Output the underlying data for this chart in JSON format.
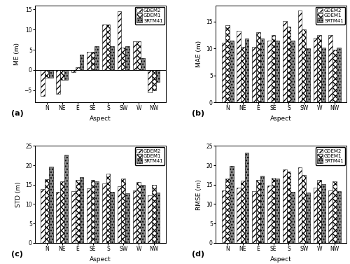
{
  "aspects": [
    "N",
    "NE",
    "E",
    "SE",
    "S",
    "SW",
    "W",
    "NW"
  ],
  "ME": {
    "GDEM2": [
      -6.5,
      -6.0,
      -0.6,
      4.5,
      11.2,
      14.5,
      7.0,
      -5.5
    ],
    "GDEM1": [
      -2.0,
      -2.5,
      0.6,
      4.5,
      11.2,
      5.5,
      7.0,
      -5.0
    ],
    "SRTM41": [
      -2.0,
      -2.5,
      3.8,
      5.8,
      5.8,
      5.8,
      3.0,
      -3.0
    ]
  },
  "MAE": {
    "GDEM2": [
      11.0,
      13.2,
      10.3,
      11.5,
      15.1,
      17.0,
      12.0,
      12.5
    ],
    "GDEM1": [
      14.3,
      10.3,
      13.0,
      12.5,
      14.0,
      13.5,
      12.5,
      9.7
    ],
    "SRTM41": [
      11.5,
      11.8,
      11.8,
      11.5,
      11.5,
      10.0,
      10.2,
      10.1
    ]
  },
  "STD": {
    "GDEM2": [
      13.8,
      13.2,
      13.3,
      14.0,
      15.3,
      14.6,
      13.5,
      12.2
    ],
    "GDEM1": [
      16.4,
      15.9,
      16.3,
      16.2,
      17.8,
      16.5,
      15.6,
      14.9
    ],
    "SRTM41": [
      19.6,
      22.8,
      17.0,
      15.8,
      13.1,
      12.7,
      15.0,
      13.0
    ]
  },
  "RMSE": {
    "GDEM2": [
      13.5,
      14.3,
      13.3,
      14.7,
      19.0,
      19.5,
      14.2,
      13.5
    ],
    "GDEM1": [
      16.5,
      16.1,
      16.3,
      16.8,
      18.3,
      17.5,
      16.2,
      15.8
    ],
    "SRTM41": [
      19.8,
      23.3,
      17.3,
      16.5,
      13.2,
      13.0,
      15.2,
      13.3
    ]
  },
  "panel_labels": [
    "(a)",
    "(b)",
    "(c)",
    "(d)"
  ],
  "ylabels": [
    "ME (m)",
    "MAE (m)",
    "STD (m)",
    "RMSE (m)"
  ],
  "ME_ylim": [
    -8,
    16
  ],
  "MAE_ylim": [
    0,
    18
  ],
  "STD_ylim": [
    0,
    25
  ],
  "RMSE_ylim": [
    0,
    25
  ],
  "ME_yticks": [
    -5,
    0,
    5,
    10,
    15
  ],
  "MAE_yticks": [
    0,
    5,
    10,
    15
  ],
  "STD_yticks": [
    0,
    5,
    10,
    15,
    20,
    25
  ],
  "RMSE_yticks": [
    0,
    5,
    10,
    15,
    20,
    25
  ]
}
